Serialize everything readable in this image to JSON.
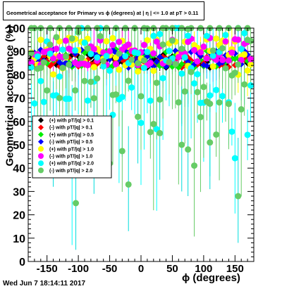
{
  "header": {
    "title": "Geometrical acceptance for Primary vs ϕ (degrees) at | η | <= 1.0 at pT > 0.11"
  },
  "footer": {
    "timestamp": "Wed Jun  7 18:14:11 2017"
  },
  "chart_data": {
    "type": "scatter",
    "title": "Geometrical acceptance for Primary vs ϕ (degrees) at | η | <= 1.0 at pT > 0.11",
    "xlabel": "ϕ (degrees)",
    "ylabel": "Geometrical acceptance (%)",
    "xlim": [
      -180,
      180
    ],
    "ylim": [
      0,
      100
    ],
    "xticks": [
      -150,
      -100,
      -50,
      0,
      50,
      100,
      150
    ],
    "yticks": [
      0,
      10,
      20,
      30,
      40,
      50,
      60,
      70,
      80,
      90,
      100
    ],
    "grid": false,
    "legend_position": "left-middle",
    "series": [
      {
        "name": "(+) with pT/|q| > 0.1",
        "color": "#000000",
        "marker": "diamond",
        "mean": 86,
        "spread": 3
      },
      {
        "name": "(-) with pT/|q| > 0.1",
        "color": "#ff0000",
        "marker": "diamond",
        "mean": 86,
        "spread": 3
      },
      {
        "name": "(+) with pT/|q| > 0.5",
        "color": "#00ee00",
        "marker": "diamond",
        "mean": 87,
        "spread": 4
      },
      {
        "name": "(-) with pT/|q| > 0.5",
        "color": "#0000ff",
        "marker": "diamond",
        "mean": 87,
        "spread": 4
      },
      {
        "name": "(+) with pT/|q| > 1.0",
        "color": "#ffff00",
        "marker": "circle",
        "mean": 88,
        "spread": 8
      },
      {
        "name": "(-) with pT/|q| > 1.0",
        "color": "#ff00ff",
        "marker": "circle",
        "mean": 90,
        "spread": 6
      },
      {
        "name": "(+) with pT/|q| > 2.0",
        "color": "#00ffff",
        "marker": "circle",
        "mean": 85,
        "spread": 18
      },
      {
        "name": "(-) with pT/|q| > 2.0",
        "color": "#66cc66",
        "marker": "circle",
        "mean": 85,
        "spread": 18
      }
    ],
    "low_points": [
      {
        "x": -104,
        "y": 25
      },
      {
        "x": -20,
        "y": 33
      },
      {
        "x": 155,
        "y": 28
      },
      {
        "x": -118,
        "y": 57
      },
      {
        "x": -75,
        "y": 49
      },
      {
        "x": 65,
        "y": 50
      },
      {
        "x": 75,
        "y": 48
      },
      {
        "x": -5,
        "y": 62
      },
      {
        "x": 110,
        "y": 51
      },
      {
        "x": 30,
        "y": 55
      },
      {
        "x": -140,
        "y": 52
      }
    ]
  }
}
